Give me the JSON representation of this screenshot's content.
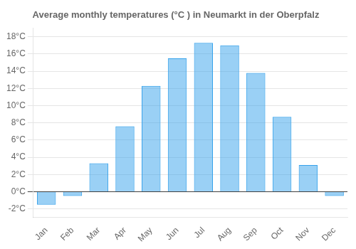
{
  "chart_data": {
    "type": "bar",
    "title": "Average monthly temperatures (°C ) in Neumarkt in der Oberpfalz",
    "categories": [
      "Jan",
      "Feb",
      "Mar",
      "Apr",
      "May",
      "Jun",
      "Jul",
      "Aug",
      "Sep",
      "Oct",
      "Nov",
      "Dec"
    ],
    "values": [
      -1.5,
      -0.5,
      3.3,
      7.6,
      12.3,
      15.5,
      17.3,
      17.0,
      13.8,
      8.7,
      3.1,
      -0.5
    ],
    "ylim": [
      -3,
      19
    ],
    "yticks": [
      {
        "value": -2,
        "label": "-2°C"
      },
      {
        "value": 0,
        "label": "0°C"
      },
      {
        "value": 2,
        "label": "2°C"
      },
      {
        "value": 4,
        "label": "4°C"
      },
      {
        "value": 6,
        "label": "6°C"
      },
      {
        "value": 8,
        "label": "8°C"
      },
      {
        "value": 10,
        "label": "10°C"
      },
      {
        "value": 12,
        "label": "12°C"
      },
      {
        "value": 14,
        "label": "14°C"
      },
      {
        "value": 16,
        "label": "16°C"
      },
      {
        "value": 18,
        "label": "18°C"
      }
    ],
    "grid": true
  }
}
